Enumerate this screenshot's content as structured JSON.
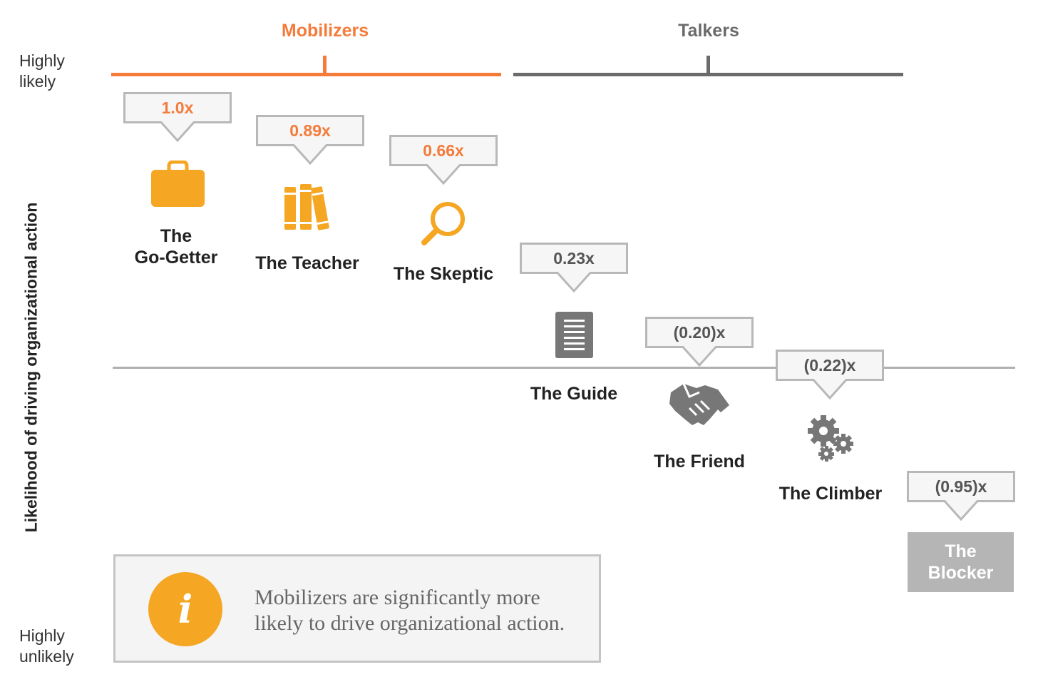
{
  "colors": {
    "mobilizer": "#f47b3a",
    "talker": "#6b6b6b",
    "icon_orange": "#f5a623",
    "icon_gray": "#777777",
    "baseline": "#b0b0b0",
    "callout_border": "#b8b8b8",
    "callout_fill": "#f6f6f6",
    "blocker_fill": "#b5b5b5"
  },
  "groups": {
    "mobilizers": "Mobilizers",
    "talkers": "Talkers"
  },
  "scale": {
    "top": [
      "Highly",
      "likely"
    ],
    "bottom": [
      "Highly",
      "unlikely"
    ],
    "axis_title": "Likelihood of driving organizational action"
  },
  "chart_data": {
    "type": "scatter",
    "ylabel": "Likelihood of driving organizational action",
    "y_unit": "x",
    "groups": [
      {
        "name": "Mobilizers",
        "members": [
          "The Go-Getter",
          "The Teacher",
          "The Skeptic"
        ]
      },
      {
        "name": "Talkers",
        "members": [
          "The Guide",
          "The Friend",
          "The Climber"
        ]
      }
    ],
    "points": [
      {
        "persona": "The Go-Getter",
        "value": 1.0,
        "label": "1.0x",
        "icon": "briefcase-icon",
        "group": "Mobilizers"
      },
      {
        "persona": "The Teacher",
        "value": 0.89,
        "label": "0.89x",
        "icon": "books-icon",
        "group": "Mobilizers"
      },
      {
        "persona": "The Skeptic",
        "value": 0.66,
        "label": "0.66x",
        "icon": "magnifier-icon",
        "group": "Mobilizers"
      },
      {
        "persona": "The Guide",
        "value": 0.23,
        "label": "0.23x",
        "icon": "document-icon",
        "group": "Talkers"
      },
      {
        "persona": "The Friend",
        "value": -0.2,
        "label": "(0.20)x",
        "icon": "handshake-icon",
        "group": "Talkers"
      },
      {
        "persona": "The Climber",
        "value": -0.22,
        "label": "(0.22)x",
        "icon": "gears-icon",
        "group": "Talkers"
      },
      {
        "persona": "The Blocker",
        "value": -0.95,
        "label": "(0.95)x",
        "icon": "",
        "group": ""
      }
    ]
  },
  "personas": {
    "go_getter": [
      "The",
      "Go-Getter"
    ],
    "teacher": "The Teacher",
    "skeptic": "The Skeptic",
    "guide": "The Guide",
    "friend": "The Friend",
    "climber": "The Climber",
    "blocker": [
      "The",
      "Blocker"
    ]
  },
  "note": {
    "icon": "info-icon",
    "icon_glyph": "i",
    "lines": [
      "Mobilizers are significantly more",
      "likely to drive organizational action."
    ]
  }
}
